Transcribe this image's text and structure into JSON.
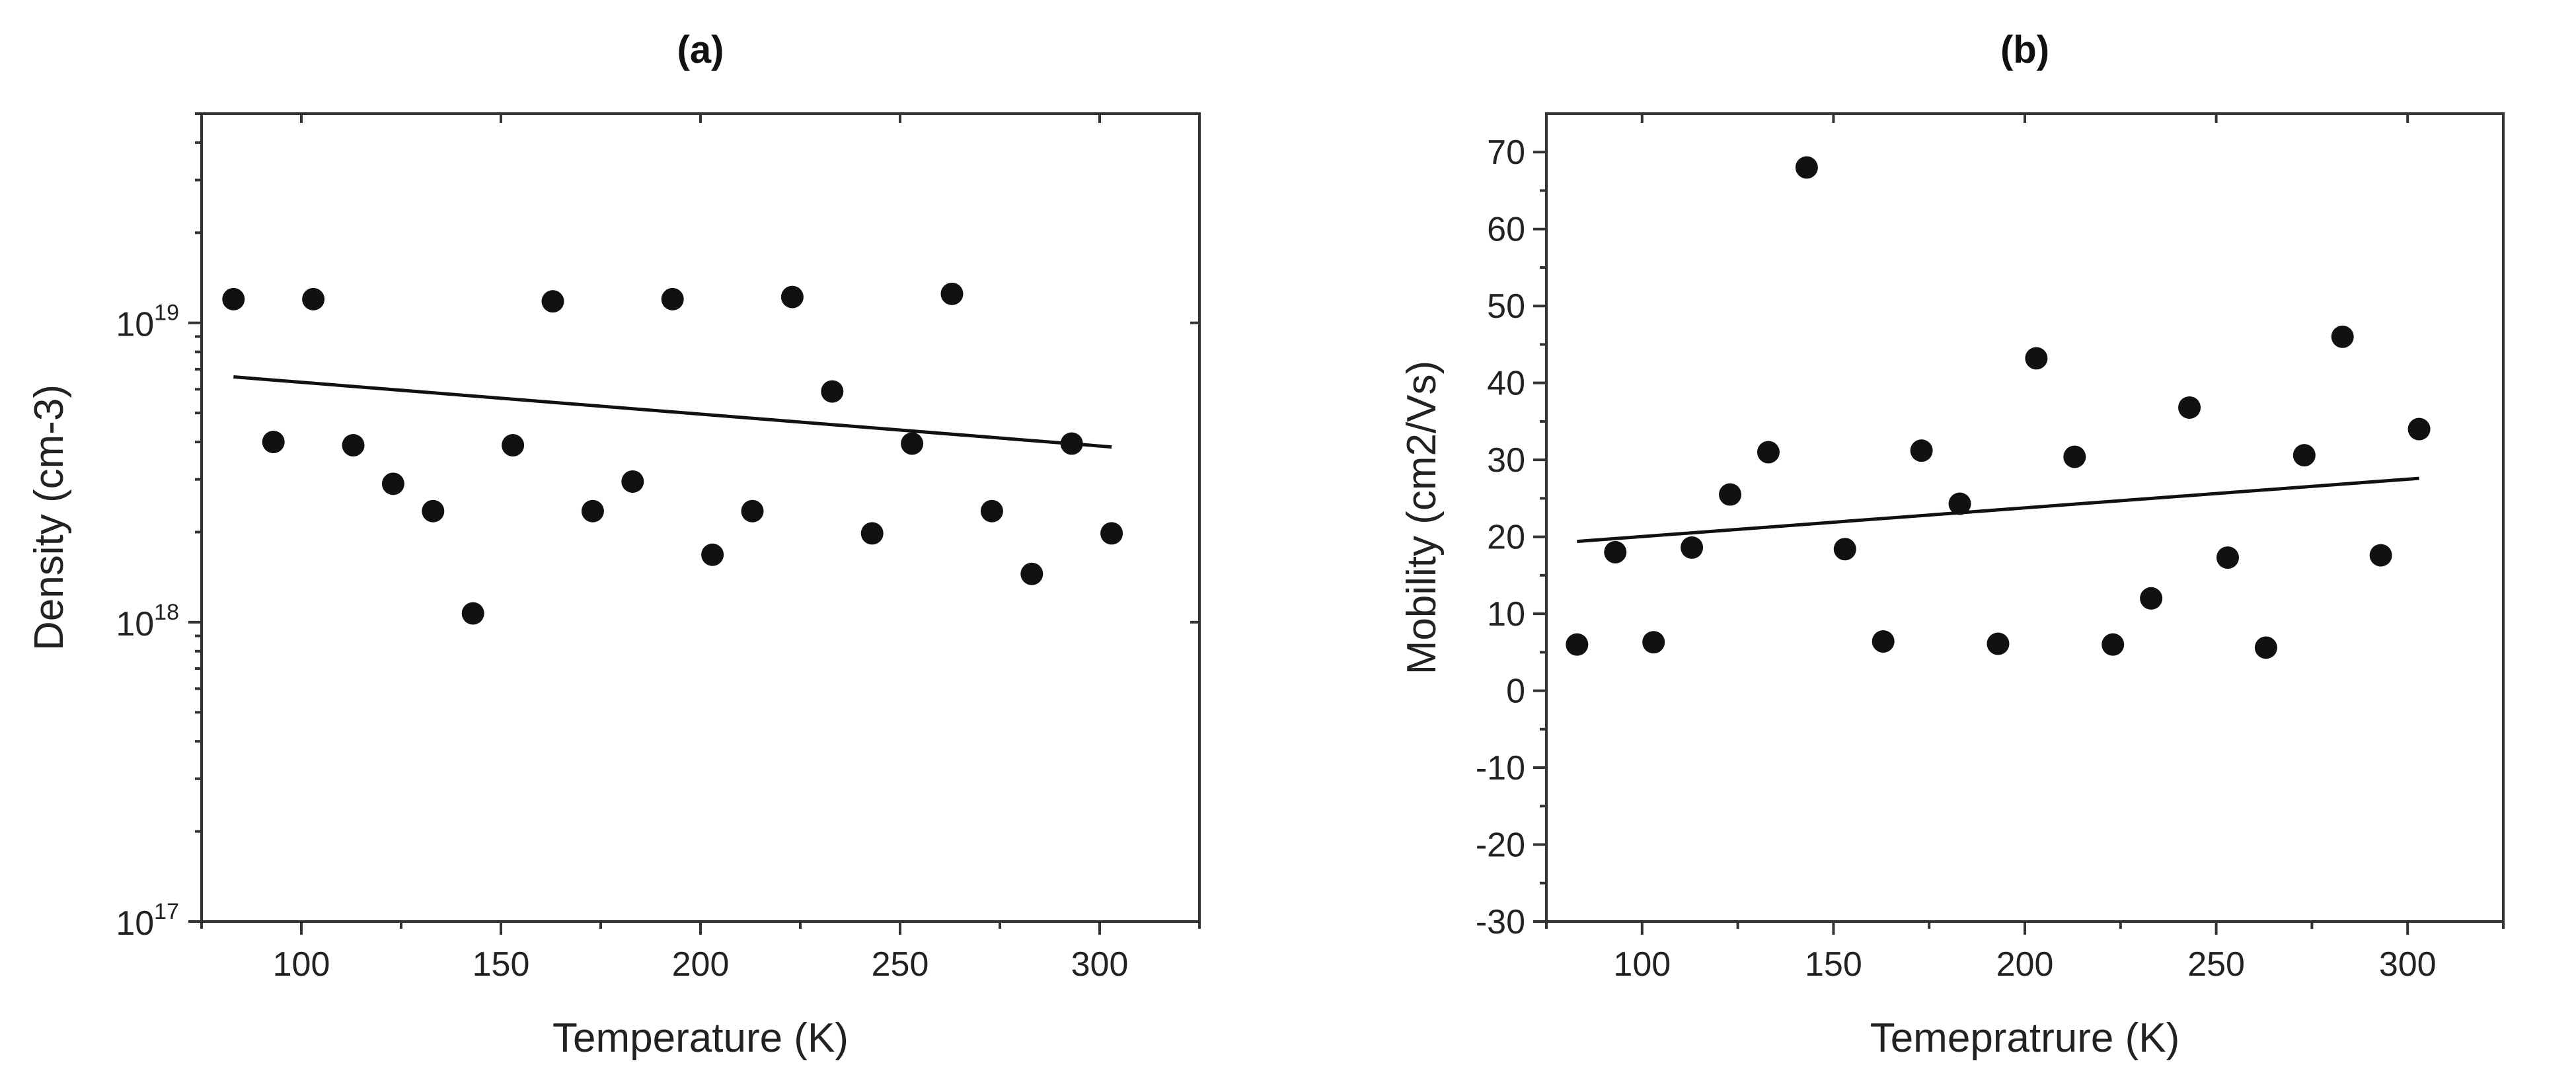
{
  "chart_data": [
    {
      "id": "a",
      "type": "scatter",
      "title": "(a)",
      "xlabel": "Temperature (K)",
      "ylabel": "Density (cm-3)",
      "yscale": "log",
      "xlim": [
        75,
        325
      ],
      "ylim": [
        1e+17,
        5e+19
      ],
      "xticks": [
        100,
        150,
        200,
        250,
        300
      ],
      "yticks": [
        {
          "value": 1e+17,
          "base": "10",
          "exp": "17"
        },
        {
          "value": 1e+18,
          "base": "10",
          "exp": "18"
        },
        {
          "value": 1e+19,
          "base": "10",
          "exp": "19"
        }
      ],
      "series": [
        {
          "name": "data",
          "x": [
            83,
            93,
            103,
            113,
            123,
            133,
            143,
            153,
            163,
            173,
            183,
            193,
            203,
            213,
            223,
            233,
            243,
            253,
            263,
            273,
            283,
            293,
            303
          ],
          "y": [
            1.2e+19,
            4e+18,
            1.2e+19,
            3.9e+18,
            2.9e+18,
            2.35e+18,
            1.07e+18,
            3.9e+18,
            1.18e+19,
            2.35e+18,
            2.95e+18,
            1.2e+19,
            1.68e+18,
            2.35e+18,
            1.22e+19,
            5.9e+18,
            1.98e+18,
            3.95e+18,
            1.25e+19,
            2.35e+18,
            1.45e+18,
            3.95e+18,
            1.98e+18
          ]
        }
      ],
      "fit": {
        "x": [
          83,
          303
        ],
        "y": [
          6.6e+18,
          3.85e+18
        ]
      }
    },
    {
      "id": "b",
      "type": "scatter",
      "title": "(b)",
      "xlabel": "Temepratrure (K)",
      "ylabel": "Mobility (cm2/Vs)",
      "yscale": "linear",
      "xlim": [
        75,
        325
      ],
      "ylim": [
        -30,
        75
      ],
      "xticks": [
        100,
        150,
        200,
        250,
        300
      ],
      "yticks": [
        -30,
        -20,
        -10,
        0,
        10,
        20,
        30,
        40,
        50,
        60,
        70
      ],
      "series": [
        {
          "name": "data",
          "x": [
            83,
            93,
            103,
            113,
            123,
            133,
            143,
            153,
            163,
            173,
            183,
            193,
            203,
            213,
            223,
            233,
            243,
            253,
            263,
            273,
            283,
            293,
            303
          ],
          "y": [
            6,
            18,
            6.3,
            18.6,
            25.5,
            31,
            68,
            18.4,
            6.4,
            31.2,
            24.3,
            6.1,
            43.2,
            30.4,
            6,
            12,
            36.8,
            17.3,
            5.6,
            30.6,
            46,
            17.6,
            34
          ]
        }
      ],
      "fit": {
        "x": [
          83,
          303
        ],
        "y": [
          19.4,
          27.6
        ]
      }
    }
  ]
}
